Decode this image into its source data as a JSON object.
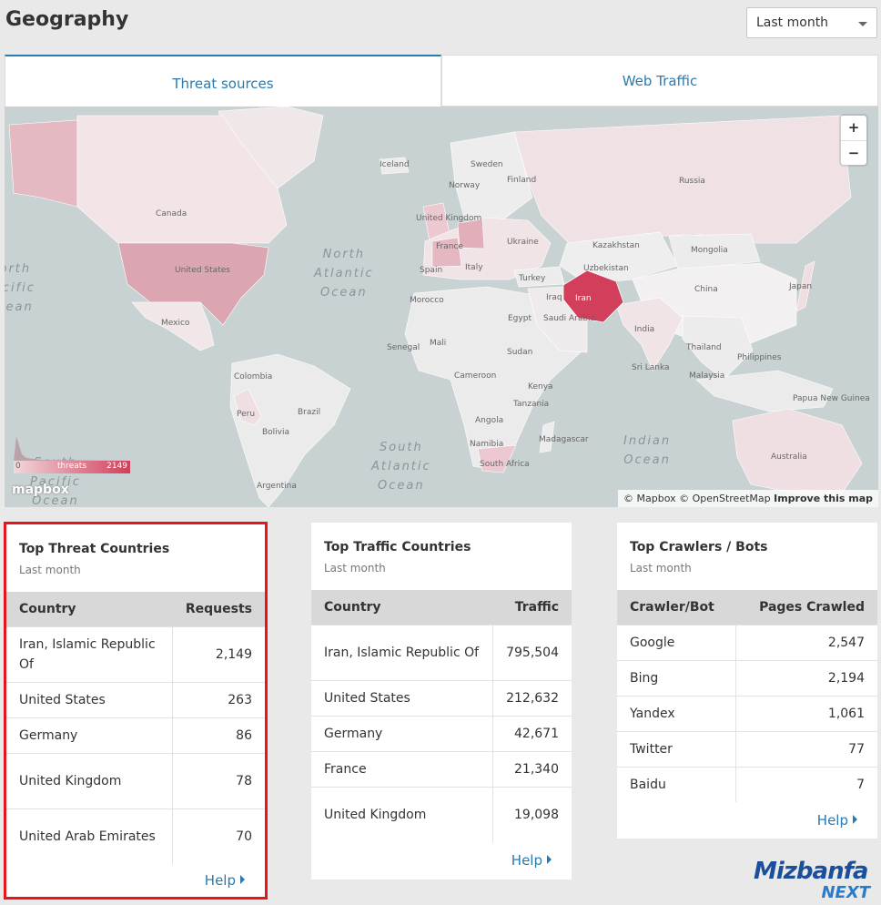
{
  "page": {
    "title": "Geography"
  },
  "range": {
    "selected": "Last month"
  },
  "tabs": [
    {
      "label": "Threat sources",
      "active": true
    },
    {
      "label": "Web Traffic",
      "active": false
    }
  ],
  "map": {
    "countries": [
      "Canada",
      "United States",
      "Mexico",
      "Colombia",
      "Peru",
      "Brazil",
      "Bolivia",
      "Argentina",
      "Iceland",
      "Sweden",
      "Norway",
      "Finland",
      "United Kingdom",
      "France",
      "Spain",
      "Italy",
      "Ukraine",
      "Turkey",
      "Morocco",
      "Mali",
      "Egypt",
      "Sudan",
      "Senegal",
      "Cameroon",
      "Kenya",
      "Tanzania",
      "Angola",
      "Namibia",
      "South Africa",
      "Madagascar",
      "Saudi Arabia",
      "Iraq",
      "Iran",
      "Kazakhstan",
      "Uzbekistan",
      "Mongolia",
      "China",
      "Japan",
      "India",
      "Sri Lanka",
      "Thailand",
      "Philippines",
      "Malaysia",
      "Papua New Guinea",
      "Australia",
      "Russia"
    ],
    "oceans": [
      "North\nAtlantic\nOcean",
      "South\nAtlantic\nOcean",
      "Indian\nOcean",
      "North\nPacific\nOcean",
      "South\nPacific\nOcean"
    ],
    "legend": {
      "min": "0",
      "label": "threats",
      "max": "2149"
    },
    "logo": "mapbox",
    "attribution": {
      "text": "© Mapbox © OpenStreetMap",
      "link": "Improve this map"
    },
    "zoom_in": "+",
    "zoom_out": "−"
  },
  "cards": {
    "threat": {
      "title": "Top Threat Countries",
      "subtitle": "Last month",
      "columns": [
        "Country",
        "Requests"
      ],
      "rows": [
        {
          "name": "Iran, Islamic Republic Of",
          "value": "2,149"
        },
        {
          "name": "United States",
          "value": "263"
        },
        {
          "name": "Germany",
          "value": "86"
        },
        {
          "name": "United Kingdom",
          "value": "78"
        },
        {
          "name": "United Arab Emirates",
          "value": "70"
        }
      ],
      "help": "Help"
    },
    "traffic": {
      "title": "Top Traffic Countries",
      "subtitle": "Last month",
      "columns": [
        "Country",
        "Traffic"
      ],
      "rows": [
        {
          "name": "Iran, Islamic Republic Of",
          "value": "795,504"
        },
        {
          "name": "United States",
          "value": "212,632"
        },
        {
          "name": "Germany",
          "value": "42,671"
        },
        {
          "name": "France",
          "value": "21,340"
        },
        {
          "name": "United Kingdom",
          "value": "19,098"
        }
      ],
      "help": "Help"
    },
    "crawlers": {
      "title": "Top Crawlers / Bots",
      "subtitle": "Last month",
      "columns": [
        "Crawler/Bot",
        "Pages Crawled"
      ],
      "rows": [
        {
          "name": "Google",
          "value": "2,547"
        },
        {
          "name": "Bing",
          "value": "2,194"
        },
        {
          "name": "Yandex",
          "value": "1,061"
        },
        {
          "name": "Twitter",
          "value": "77"
        },
        {
          "name": "Baidu",
          "value": "7"
        }
      ],
      "help": "Help"
    }
  },
  "brand": {
    "name": "Mizbanfa",
    "sub": "NEXT"
  },
  "colors": {
    "accent": "#2a7ab0",
    "threat_high": "#d23f5b",
    "highlight": "#e8141c"
  }
}
